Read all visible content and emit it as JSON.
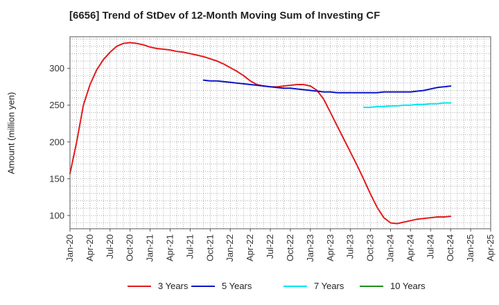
{
  "chart_data": {
    "type": "line",
    "title": "[6656]  Trend of StDev of 12-Month Moving Sum of Investing CF",
    "ylabel": "Amount (million yen)",
    "xlabel": "",
    "ylim": [
      82,
      343
    ],
    "y_ticks": [
      100,
      150,
      200,
      250,
      300
    ],
    "x_ticks": [
      "Jan-20",
      "Apr-20",
      "Jul-20",
      "Oct-20",
      "Jan-21",
      "Apr-21",
      "Jul-21",
      "Oct-21",
      "Jan-22",
      "Apr-22",
      "Jul-22",
      "Oct-22",
      "Jan-23",
      "Apr-23",
      "Jul-23",
      "Oct-23",
      "Jan-24",
      "Apr-24",
      "Jul-24",
      "Oct-24",
      "Jan-25",
      "Apr-25"
    ],
    "x_range": [
      "2020-01",
      "2025-04"
    ],
    "grid": true,
    "legend_position": "bottom",
    "series": [
      {
        "name": "3 Years",
        "color": "#e31a1c",
        "points": [
          [
            "2020-01",
            157
          ],
          [
            "2020-02",
            200
          ],
          [
            "2020-03",
            250
          ],
          [
            "2020-04",
            278
          ],
          [
            "2020-05",
            298
          ],
          [
            "2020-06",
            312
          ],
          [
            "2020-07",
            322
          ],
          [
            "2020-08",
            330
          ],
          [
            "2020-09",
            334
          ],
          [
            "2020-10",
            335
          ],
          [
            "2020-11",
            334
          ],
          [
            "2020-12",
            332
          ],
          [
            "2021-01",
            329
          ],
          [
            "2021-02",
            327
          ],
          [
            "2021-03",
            326
          ],
          [
            "2021-04",
            325
          ],
          [
            "2021-05",
            323
          ],
          [
            "2021-06",
            322
          ],
          [
            "2021-07",
            320
          ],
          [
            "2021-08",
            318
          ],
          [
            "2021-09",
            316
          ],
          [
            "2021-10",
            313
          ],
          [
            "2021-11",
            310
          ],
          [
            "2021-12",
            306
          ],
          [
            "2022-01",
            301
          ],
          [
            "2022-02",
            296
          ],
          [
            "2022-03",
            290
          ],
          [
            "2022-04",
            283
          ],
          [
            "2022-05",
            278
          ],
          [
            "2022-06",
            276
          ],
          [
            "2022-07",
            275
          ],
          [
            "2022-08",
            275
          ],
          [
            "2022-09",
            276
          ],
          [
            "2022-10",
            277
          ],
          [
            "2022-11",
            278
          ],
          [
            "2022-12",
            278
          ],
          [
            "2023-01",
            276
          ],
          [
            "2023-02",
            270
          ],
          [
            "2023-03",
            258
          ],
          [
            "2023-04",
            240
          ],
          [
            "2023-05",
            222
          ],
          [
            "2023-06",
            204
          ],
          [
            "2023-07",
            186
          ],
          [
            "2023-08",
            168
          ],
          [
            "2023-09",
            149
          ],
          [
            "2023-10",
            129
          ],
          [
            "2023-11",
            111
          ],
          [
            "2023-12",
            97
          ],
          [
            "2024-01",
            90
          ],
          [
            "2024-02",
            89
          ],
          [
            "2024-03",
            91
          ],
          [
            "2024-04",
            93
          ],
          [
            "2024-05",
            95
          ],
          [
            "2024-06",
            96
          ],
          [
            "2024-07",
            97
          ],
          [
            "2024-08",
            98
          ],
          [
            "2024-09",
            98
          ],
          [
            "2024-10",
            99
          ]
        ]
      },
      {
        "name": "5 Years",
        "color": "#0a14c8",
        "points": [
          [
            "2021-09",
            284
          ],
          [
            "2021-10",
            283
          ],
          [
            "2021-11",
            283
          ],
          [
            "2021-12",
            282
          ],
          [
            "2022-01",
            281
          ],
          [
            "2022-02",
            280
          ],
          [
            "2022-03",
            279
          ],
          [
            "2022-04",
            278
          ],
          [
            "2022-05",
            277
          ],
          [
            "2022-06",
            276
          ],
          [
            "2022-07",
            275
          ],
          [
            "2022-08",
            274
          ],
          [
            "2022-09",
            273
          ],
          [
            "2022-10",
            273
          ],
          [
            "2022-11",
            272
          ],
          [
            "2022-12",
            271
          ],
          [
            "2023-01",
            270
          ],
          [
            "2023-02",
            269
          ],
          [
            "2023-03",
            268
          ],
          [
            "2023-04",
            268
          ],
          [
            "2023-05",
            267
          ],
          [
            "2023-06",
            267
          ],
          [
            "2023-07",
            267
          ],
          [
            "2023-08",
            267
          ],
          [
            "2023-09",
            267
          ],
          [
            "2023-10",
            267
          ],
          [
            "2023-11",
            267
          ],
          [
            "2023-12",
            268
          ],
          [
            "2024-01",
            268
          ],
          [
            "2024-02",
            268
          ],
          [
            "2024-03",
            268
          ],
          [
            "2024-04",
            268
          ],
          [
            "2024-05",
            269
          ],
          [
            "2024-06",
            270
          ],
          [
            "2024-07",
            272
          ],
          [
            "2024-08",
            274
          ],
          [
            "2024-09",
            275
          ],
          [
            "2024-10",
            276
          ]
        ]
      },
      {
        "name": "7 Years",
        "color": "#00e5ee",
        "points": [
          [
            "2023-09",
            247
          ],
          [
            "2023-10",
            247
          ],
          [
            "2023-11",
            248
          ],
          [
            "2023-12",
            248
          ],
          [
            "2024-01",
            249
          ],
          [
            "2024-02",
            249
          ],
          [
            "2024-03",
            250
          ],
          [
            "2024-04",
            250
          ],
          [
            "2024-05",
            251
          ],
          [
            "2024-06",
            251
          ],
          [
            "2024-07",
            252
          ],
          [
            "2024-08",
            252
          ],
          [
            "2024-09",
            253
          ],
          [
            "2024-10",
            253
          ]
        ]
      },
      {
        "name": "10 Years",
        "color": "#1f8f1f",
        "points": []
      }
    ]
  }
}
